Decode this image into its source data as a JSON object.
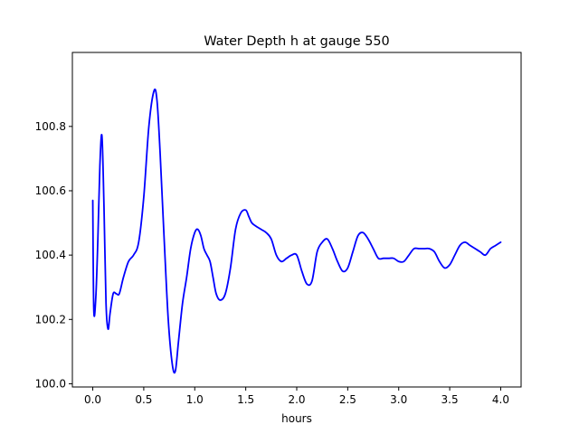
{
  "chart_data": {
    "type": "line",
    "title": "Water Depth h at gauge 550",
    "xlabel": "hours",
    "ylabel": "",
    "xlim": [
      -0.2,
      4.2
    ],
    "ylim": [
      99.99,
      101.03
    ],
    "xticks": [
      0.0,
      0.5,
      1.0,
      1.5,
      2.0,
      2.5,
      3.0,
      3.5,
      4.0
    ],
    "xtick_labels": [
      "0.0",
      "0.5",
      "1.0",
      "1.5",
      "2.0",
      "2.5",
      "3.0",
      "3.5",
      "4.0"
    ],
    "yticks": [
      100.0,
      100.2,
      100.4,
      100.6,
      100.8
    ],
    "ytick_labels": [
      "100.0",
      "100.2",
      "100.4",
      "100.6",
      "100.8"
    ],
    "grid": false,
    "series": [
      {
        "color": "#0000ff",
        "x": [
          0.0,
          0.01,
          0.03,
          0.05,
          0.07,
          0.09,
          0.11,
          0.13,
          0.15,
          0.17,
          0.2,
          0.23,
          0.26,
          0.3,
          0.35,
          0.4,
          0.45,
          0.5,
          0.55,
          0.6,
          0.63,
          0.66,
          0.7,
          0.74,
          0.78,
          0.81,
          0.84,
          0.88,
          0.92,
          0.96,
          1.0,
          1.03,
          1.06,
          1.09,
          1.12,
          1.15,
          1.18,
          1.21,
          1.25,
          1.3,
          1.35,
          1.4,
          1.45,
          1.5,
          1.53,
          1.56,
          1.6,
          1.65,
          1.7,
          1.75,
          1.8,
          1.85,
          1.9,
          1.95,
          2.0,
          2.05,
          2.1,
          2.15,
          2.2,
          2.25,
          2.3,
          2.35,
          2.4,
          2.45,
          2.5,
          2.55,
          2.6,
          2.65,
          2.7,
          2.75,
          2.8,
          2.85,
          2.9,
          2.95,
          3.0,
          3.05,
          3.1,
          3.15,
          3.2,
          3.25,
          3.3,
          3.35,
          3.4,
          3.45,
          3.5,
          3.55,
          3.6,
          3.65,
          3.7,
          3.75,
          3.8,
          3.85,
          3.9,
          3.95,
          4.0
        ],
        "y": [
          100.57,
          100.23,
          100.27,
          100.45,
          100.68,
          100.77,
          100.55,
          100.25,
          100.17,
          100.22,
          100.28,
          100.28,
          100.28,
          100.33,
          100.38,
          100.4,
          100.44,
          100.58,
          100.8,
          100.91,
          100.88,
          100.72,
          100.45,
          100.2,
          100.06,
          100.04,
          100.13,
          100.25,
          100.33,
          100.42,
          100.47,
          100.48,
          100.46,
          100.42,
          100.4,
          100.38,
          100.33,
          100.28,
          100.26,
          100.28,
          100.36,
          100.48,
          100.53,
          100.54,
          100.52,
          100.5,
          100.49,
          100.48,
          100.47,
          100.45,
          100.4,
          100.38,
          100.39,
          100.4,
          100.4,
          100.35,
          100.31,
          100.32,
          100.41,
          100.44,
          100.45,
          100.42,
          100.38,
          100.35,
          100.36,
          100.41,
          100.46,
          100.47,
          100.45,
          100.42,
          100.39,
          100.39,
          100.39,
          100.39,
          100.38,
          100.38,
          100.4,
          100.42,
          100.42,
          100.42,
          100.42,
          100.41,
          100.38,
          100.36,
          100.37,
          100.4,
          100.43,
          100.44,
          100.43,
          100.42,
          100.41,
          100.4,
          100.42,
          100.43,
          100.44
        ]
      }
    ]
  }
}
